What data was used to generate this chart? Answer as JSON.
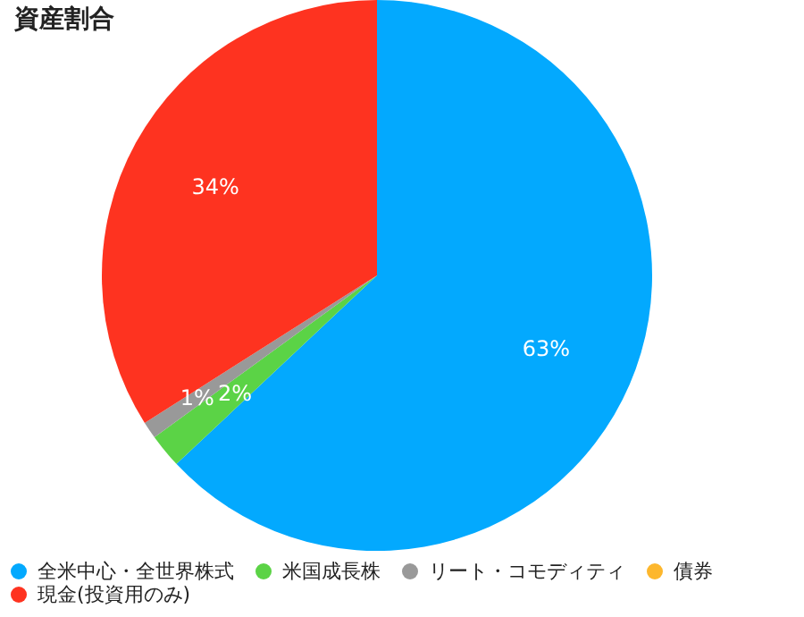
{
  "chart_data": {
    "type": "pie",
    "title": "資産割合",
    "categories": [
      "全米中心・全世界株式",
      "米国成長株",
      "リート・コモディティ",
      "債券",
      "現金(投資用のみ)"
    ],
    "values": [
      63,
      2,
      1,
      0,
      34
    ],
    "colors": [
      "#03a9fe",
      "#5bd346",
      "#999999",
      "#fdb72d",
      "#fe3320"
    ],
    "value_labels": [
      "63%",
      "2%",
      "1%",
      null,
      "34%"
    ],
    "legend": "bottom"
  }
}
